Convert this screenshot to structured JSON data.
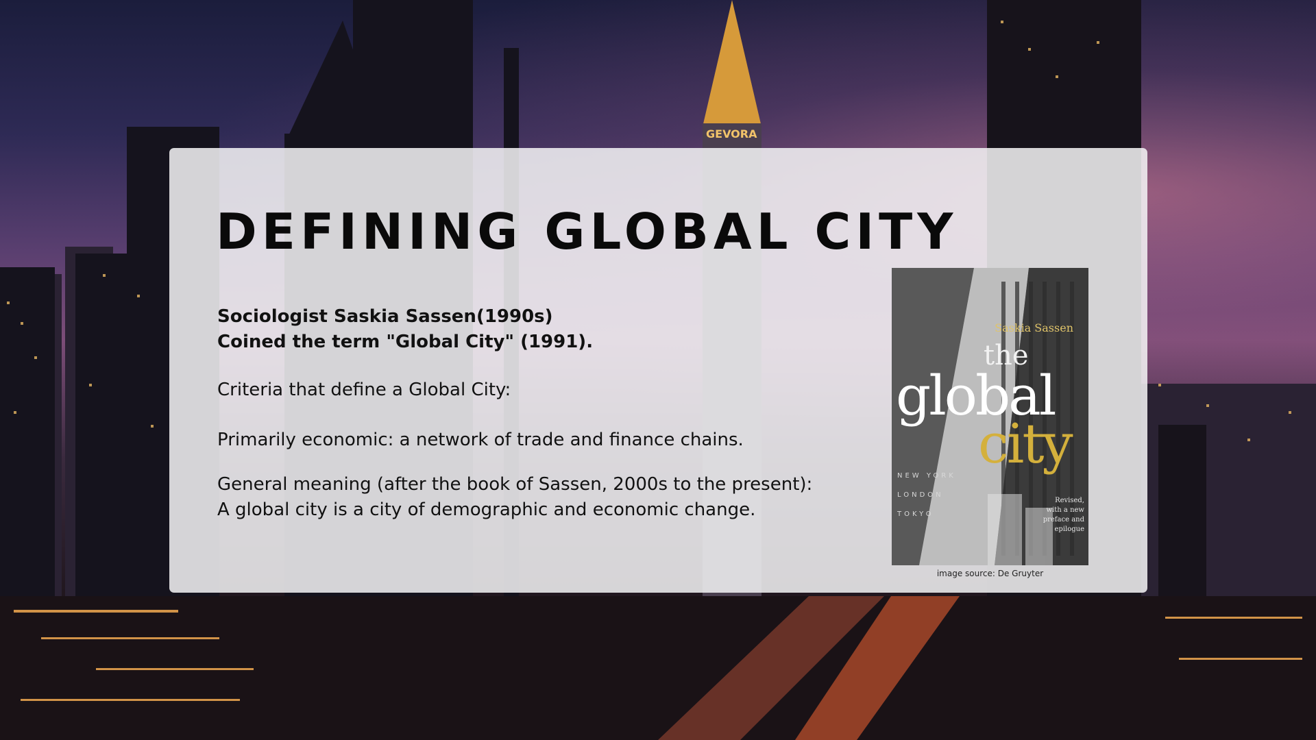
{
  "slide": {
    "title": "DEFINING GLOBAL CITY",
    "lines": {
      "line1": "Sociologist Saskia Sassen(1990s)",
      "line2": "Coined the term \"Global City\" (1991).",
      "line3": "Criteria that define a Global City:",
      "line4": "Primarily economic: a network of trade and finance chains.",
      "line5": "General meaning (after the book of Sassen, 2000s to the present):",
      "line6": "A global city is a city of demographic and economic change."
    },
    "image_caption": "image source:  De Gruyter"
  },
  "background_sign": "GEVORA",
  "book_cover": {
    "author": "Saskia Sassen",
    "title_the": "the",
    "title_global": "global",
    "title_city": "city",
    "cities": [
      "NEW YORK",
      "LONDON",
      "TOKYO"
    ],
    "note": [
      "Revised,",
      "with a new",
      "preface and",
      "epilogue"
    ]
  },
  "colors": {
    "panel": "#f4f4f6",
    "title_text": "#0a0a0a",
    "book_gold": "#d4b03c"
  }
}
